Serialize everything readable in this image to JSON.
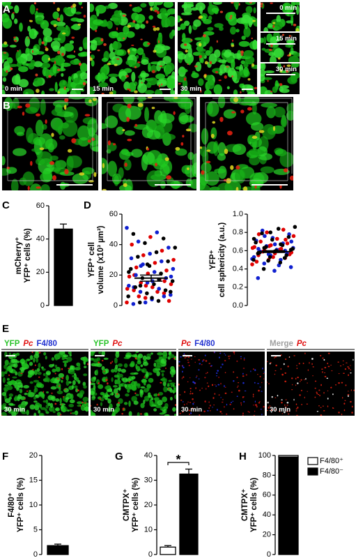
{
  "panel_labels": [
    "A",
    "B",
    "C",
    "D",
    "E",
    "F",
    "G",
    "H"
  ],
  "panel_a": {
    "captions": [
      "0 min",
      "15 min",
      "30 min"
    ],
    "inset_captions": [
      "0 min",
      "15 min",
      "30 min"
    ]
  },
  "panel_e": {
    "headers": [
      [
        {
          "text": "YFP",
          "color": "#2bc42b"
        },
        {
          "text": "Pc",
          "color": "#e01010",
          "italic": true
        },
        {
          "text": "F4/80",
          "color": "#2030d0"
        }
      ],
      [
        {
          "text": "YFP",
          "color": "#2bc42b"
        },
        {
          "text": "Pc",
          "color": "#e01010",
          "italic": true
        }
      ],
      [
        {
          "text": "Pc",
          "color": "#e01010",
          "italic": true
        },
        {
          "text": "F4/80",
          "color": "#2030d0"
        }
      ],
      [
        {
          "text": "Merge",
          "color": "#a0a0a0"
        },
        {
          "text": "Pc",
          "color": "#e01010",
          "italic": true
        }
      ]
    ],
    "captions": [
      "30 min",
      "30 min",
      "30 min",
      "30 min"
    ]
  },
  "chart_data": [
    {
      "type": "bar",
      "ylabel": [
        "mCherry⁺",
        "YFP⁺ cells (%)"
      ],
      "ylim": [
        0,
        60
      ],
      "yticks": [
        0,
        20,
        40,
        60
      ],
      "values": [
        46
      ],
      "errors": [
        3
      ],
      "colors": [
        "#000000"
      ]
    },
    {
      "type": "strip",
      "ylabel": [
        "YFP⁺ cell",
        "volume (x10³ µm³)"
      ],
      "ylim": [
        0,
        60
      ],
      "yticks": [
        0,
        20,
        40,
        60
      ],
      "mean": 18,
      "sem": 2,
      "series": [
        {
          "color": "#e00000",
          "values": [
            2,
            5,
            8,
            10,
            12,
            14,
            15,
            17,
            19,
            21,
            23,
            25,
            28,
            30,
            33,
            36,
            40,
            45,
            3,
            6,
            9,
            11,
            13,
            16,
            20
          ]
        },
        {
          "color": "#1020d0",
          "values": [
            1,
            4,
            7,
            9,
            11,
            13,
            15,
            18,
            20,
            22,
            24,
            27,
            29,
            31,
            34,
            38,
            42,
            48,
            51,
            2,
            6,
            12,
            16,
            19,
            26
          ]
        },
        {
          "color": "#000000",
          "values": [
            2,
            3,
            6,
            8,
            10,
            12,
            14,
            16,
            18,
            21,
            24,
            26,
            29,
            32,
            35,
            38,
            41,
            44,
            47,
            5,
            9,
            13,
            17,
            22,
            27
          ]
        }
      ]
    },
    {
      "type": "strip",
      "ylabel": [
        "YFP⁺",
        "cell sphericity (a.u.)"
      ],
      "ylim": [
        0,
        1
      ],
      "yticks": [
        {
          "value": 0,
          "label": "0.0"
        },
        0.2,
        0.4,
        0.6,
        0.8,
        {
          "value": 1,
          "label": "1.0"
        }
      ],
      "mean": 0.59,
      "sem": 0.01,
      "series": [
        {
          "color": "#e00000",
          "values": [
            0.45,
            0.5,
            0.52,
            0.55,
            0.57,
            0.58,
            0.6,
            0.62,
            0.64,
            0.66,
            0.68,
            0.7,
            0.73,
            0.76,
            0.8,
            0.83,
            0.48,
            0.53,
            0.56,
            0.59,
            0.61,
            0.63,
            0.65,
            0.72,
            0.78
          ]
        },
        {
          "color": "#1020d0",
          "values": [
            0.3,
            0.38,
            0.42,
            0.46,
            0.5,
            0.53,
            0.55,
            0.57,
            0.59,
            0.61,
            0.63,
            0.65,
            0.68,
            0.71,
            0.74,
            0.78,
            0.82,
            0.44,
            0.51,
            0.56,
            0.6,
            0.62,
            0.67,
            0.7,
            0.76
          ]
        },
        {
          "color": "#000000",
          "values": [
            0.4,
            0.47,
            0.5,
            0.53,
            0.55,
            0.58,
            0.6,
            0.62,
            0.64,
            0.66,
            0.69,
            0.72,
            0.75,
            0.79,
            0.84,
            0.86,
            0.49,
            0.52,
            0.57,
            0.59,
            0.61,
            0.63,
            0.67,
            0.73,
            0.8
          ]
        }
      ]
    },
    {
      "type": "bar",
      "ylabel": [
        "F4/80⁺",
        "YFP⁺ cells (%)"
      ],
      "ylim": [
        0,
        20
      ],
      "yticks": [
        0,
        5,
        10,
        15,
        20
      ],
      "values": [
        1.8
      ],
      "errors": [
        0.3
      ],
      "colors": [
        "#000000"
      ]
    },
    {
      "type": "bar",
      "ylabel": [
        "CMTPX⁺",
        "YFP⁺ cells (%)"
      ],
      "ylim": [
        0,
        40
      ],
      "yticks": [
        0,
        10,
        20,
        30,
        40
      ],
      "values": [
        3,
        32.5
      ],
      "errors": [
        0.6,
        2
      ],
      "colors": [
        "#ffffff",
        "#000000"
      ],
      "annotation": "*"
    },
    {
      "type": "stacked_bar",
      "ylabel": [
        "CMTPX⁺",
        "YFP⁺ cells (%)"
      ],
      "ylim": [
        0,
        100
      ],
      "yticks": [
        0,
        20,
        40,
        60,
        80,
        100
      ],
      "series": [
        {
          "name": "F4/80⁻",
          "color": "#000000",
          "values": [
            98.5
          ]
        },
        {
          "name": "F4/80⁺",
          "color": "#ffffff",
          "values": [
            1.5
          ]
        }
      ]
    }
  ]
}
